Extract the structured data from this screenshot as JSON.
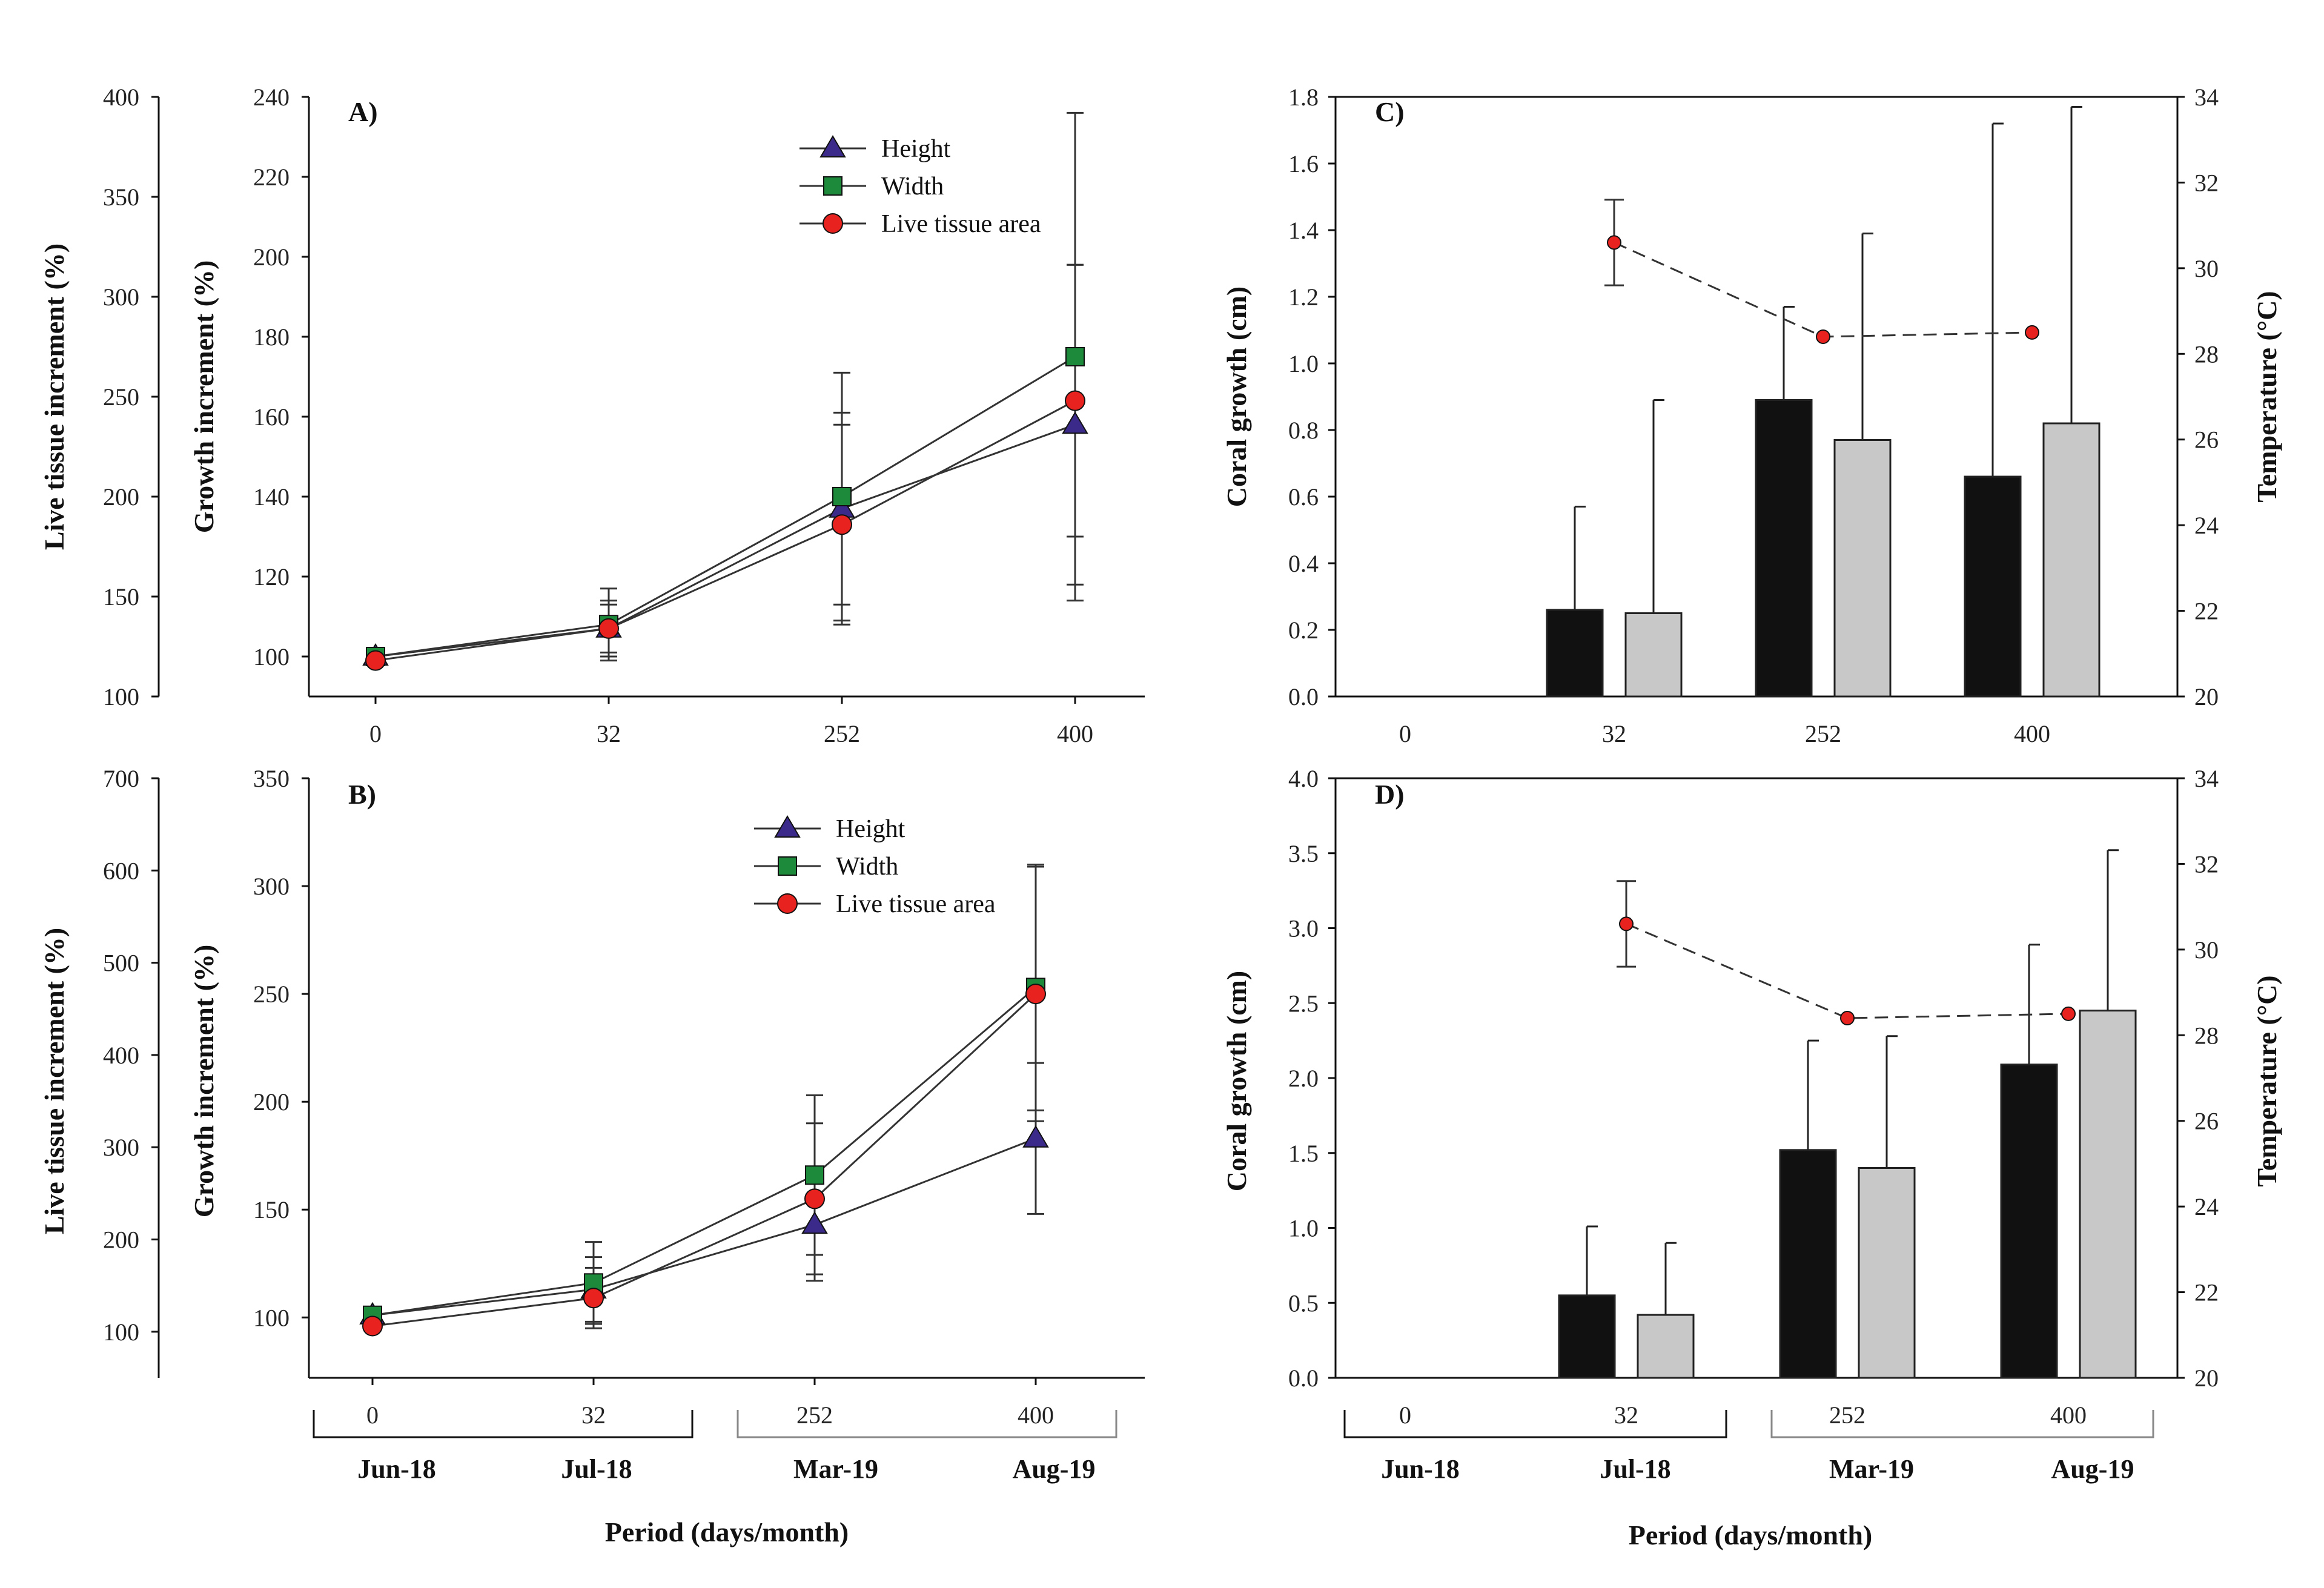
{
  "chart_data": [
    {
      "id": "A",
      "type": "line",
      "panel_label": "A)",
      "categories": [
        "0",
        "32",
        "252",
        "400"
      ],
      "ylabel_left_outer": "Live tissue increment (%)",
      "ylabel_left_inner": "Growth increment (%)",
      "outer_ylim": [
        100,
        400
      ],
      "outer_ticks": [
        "100",
        "150",
        "200",
        "250",
        "300",
        "350",
        "400"
      ],
      "inner_ylim": [
        90,
        240
      ],
      "inner_ticks": [
        "100",
        "120",
        "140",
        "160",
        "180",
        "200",
        "220",
        "240"
      ],
      "series": [
        {
          "name": "Height",
          "marker": "triangle",
          "color": "#3b2a8a",
          "values": [
            100,
            107,
            137,
            158
          ],
          "err": [
            1,
            6,
            24,
            40
          ]
        },
        {
          "name": "Width",
          "marker": "square",
          "color": "#1c8a3a",
          "values": [
            100,
            108,
            140,
            175
          ],
          "err": [
            1,
            9,
            31,
            61
          ]
        },
        {
          "name": "Live tissue area",
          "marker": "circle",
          "color": "#e8231f",
          "values": [
            99,
            107,
            133,
            164
          ],
          "err": [
            1,
            7,
            25,
            34
          ]
        }
      ]
    },
    {
      "id": "B",
      "type": "line",
      "panel_label": "B)",
      "categories": [
        "0",
        "32",
        "252",
        "400"
      ],
      "ylabel_left_outer": "Live tissue increment (%)",
      "ylabel_left_inner": "Growth increment (%)",
      "outer_ylim": [
        50,
        700
      ],
      "outer_ticks": [
        "100",
        "200",
        "300",
        "400",
        "500",
        "600",
        "700"
      ],
      "inner_ylim": [
        72,
        350
      ],
      "inner_ticks": [
        "100",
        "150",
        "200",
        "250",
        "300",
        "350"
      ],
      "series": [
        {
          "name": "Height",
          "marker": "triangle",
          "color": "#3b2a8a",
          "values": [
            101,
            113,
            143,
            183
          ],
          "err": [
            1,
            15,
            26,
            35
          ]
        },
        {
          "name": "Width",
          "marker": "square",
          "color": "#1c8a3a",
          "values": [
            101,
            116,
            166,
            253
          ],
          "err": [
            1,
            19,
            37,
            57
          ]
        },
        {
          "name": "Live tissue area",
          "marker": "circle",
          "color": "#e8231f",
          "values": [
            96,
            109,
            155,
            250
          ],
          "err": [
            1,
            14,
            35,
            59
          ]
        }
      ]
    },
    {
      "id": "C",
      "type": "bar",
      "panel_label": "C)",
      "categories": [
        "0",
        "32",
        "252",
        "400"
      ],
      "ylabel": "Coral growth (cm)",
      "ylabel_right": "Temperature (°C)",
      "ylim": [
        0,
        1.8
      ],
      "yticks": [
        "0.0",
        "0.2",
        "0.4",
        "0.6",
        "0.8",
        "1.0",
        "1.2",
        "1.4",
        "1.6",
        "1.8"
      ],
      "y2lim": [
        20,
        34
      ],
      "y2ticks": [
        "20",
        "22",
        "24",
        "26",
        "28",
        "30",
        "32",
        "34"
      ],
      "series": [
        {
          "name": "black",
          "color": "#111111",
          "values": [
            0,
            0.26,
            0.89,
            0.66
          ],
          "err": [
            0,
            0.31,
            0.28,
            1.06
          ]
        },
        {
          "name": "grey",
          "color": "#c8c8c8",
          "values": [
            0,
            0.25,
            0.77,
            0.82
          ],
          "err": [
            0,
            0.64,
            0.62,
            0.95
          ]
        }
      ],
      "temperature": {
        "values": [
          null,
          30.6,
          28.4,
          28.5
        ],
        "err": [
          null,
          1.0,
          null,
          null
        ]
      }
    },
    {
      "id": "D",
      "type": "bar",
      "panel_label": "D)",
      "categories": [
        "0",
        "32",
        "252",
        "400"
      ],
      "ylabel": "Coral growth (cm)",
      "ylabel_right": "Temperature (°C)",
      "ylim": [
        0,
        4.0
      ],
      "yticks": [
        "0.0",
        "0.5",
        "1.0",
        "1.5",
        "2.0",
        "2.5",
        "3.0",
        "3.5",
        "4.0"
      ],
      "y2lim": [
        20,
        34
      ],
      "y2ticks": [
        "20",
        "22",
        "24",
        "26",
        "28",
        "30",
        "32",
        "34"
      ],
      "series": [
        {
          "name": "black",
          "color": "#111111",
          "values": [
            0,
            0.55,
            1.52,
            2.09
          ],
          "err": [
            0,
            0.46,
            0.73,
            0.8
          ]
        },
        {
          "name": "grey",
          "color": "#c8c8c8",
          "values": [
            0,
            0.42,
            1.4,
            2.45
          ],
          "err": [
            0,
            0.48,
            0.88,
            1.07
          ]
        }
      ],
      "temperature": {
        "values": [
          null,
          30.6,
          28.4,
          28.5
        ],
        "err": [
          null,
          1.0,
          null,
          null
        ]
      }
    }
  ],
  "months": [
    "Jun-18",
    "Jul-18",
    "Mar-19",
    "Aug-19"
  ],
  "xlabel": "Period (days/month)"
}
